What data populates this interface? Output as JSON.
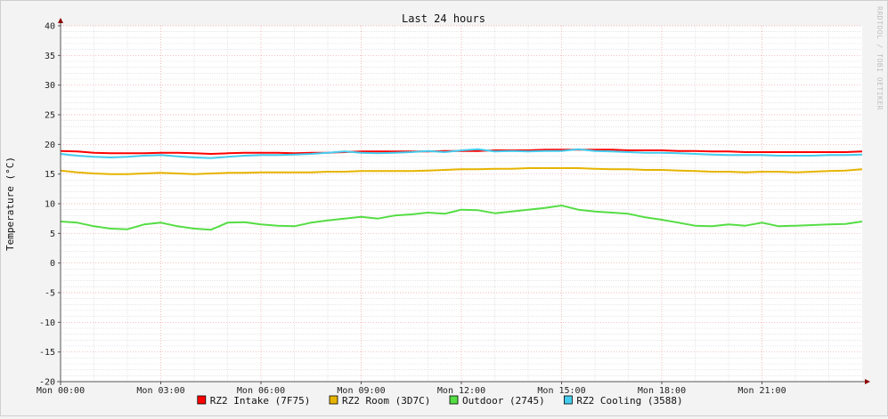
{
  "chart_data": {
    "type": "line",
    "title": "Last 24 hours",
    "ylabel": "Temperature (°C)",
    "watermark": "RRDTOOL / TOBI OETIKER",
    "ylim": [
      -20,
      40
    ],
    "yticks": [
      40,
      35,
      30,
      25,
      20,
      15,
      10,
      5,
      0,
      -5,
      -10,
      -15,
      -20
    ],
    "xlim": [
      0,
      24
    ],
    "xticks": [
      {
        "hour": 0,
        "label": "Mon 00:00"
      },
      {
        "hour": 3,
        "label": "Mon 03:00"
      },
      {
        "hour": 6,
        "label": "Mon 06:00"
      },
      {
        "hour": 9,
        "label": "Mon 09:00"
      },
      {
        "hour": 12,
        "label": "Mon 12:00"
      },
      {
        "hour": 15,
        "label": "Mon 15:00"
      },
      {
        "hour": 18,
        "label": "Mon 18:00"
      },
      {
        "hour": 21,
        "label": "Mon 21:00"
      }
    ],
    "grid": true,
    "legend_position": "bottom",
    "series": [
      {
        "name": "RZ2 Intake (7F75)",
        "color": "#ff0000",
        "x": [
          0,
          0.5,
          1,
          1.5,
          2,
          2.5,
          3,
          3.5,
          4,
          4.5,
          5,
          5.5,
          6,
          6.5,
          7,
          7.5,
          8,
          8.5,
          9,
          9.5,
          10,
          10.5,
          11,
          11.5,
          12,
          12.5,
          13,
          13.5,
          14,
          14.5,
          15,
          15.5,
          16,
          16.5,
          17,
          17.5,
          18,
          18.5,
          19,
          19.5,
          20,
          20.5,
          21,
          21.5,
          22,
          22.5,
          23,
          23.5,
          24
        ],
        "values": [
          18.9,
          18.8,
          18.6,
          18.5,
          18.5,
          18.5,
          18.6,
          18.6,
          18.5,
          18.4,
          18.5,
          18.6,
          18.6,
          18.6,
          18.5,
          18.6,
          18.6,
          18.7,
          18.8,
          18.8,
          18.8,
          18.8,
          18.8,
          18.9,
          18.9,
          18.9,
          19.0,
          19.0,
          19.0,
          19.1,
          19.1,
          19.1,
          19.1,
          19.1,
          19.0,
          19.0,
          19.0,
          18.9,
          18.9,
          18.8,
          18.8,
          18.7,
          18.7,
          18.7,
          18.7,
          18.7,
          18.7,
          18.7,
          18.8
        ]
      },
      {
        "name": "RZ2 Room (3D7C)",
        "color": "#e6b400",
        "x": [
          0,
          0.5,
          1,
          1.5,
          2,
          2.5,
          3,
          3.5,
          4,
          4.5,
          5,
          5.5,
          6,
          6.5,
          7,
          7.5,
          8,
          8.5,
          9,
          9.5,
          10,
          10.5,
          11,
          11.5,
          12,
          12.5,
          13,
          13.5,
          14,
          14.5,
          15,
          15.5,
          16,
          16.5,
          17,
          17.5,
          18,
          18.5,
          19,
          19.5,
          20,
          20.5,
          21,
          21.5,
          22,
          22.5,
          23,
          23.5,
          24
        ],
        "values": [
          15.6,
          15.3,
          15.1,
          15.0,
          15.0,
          15.1,
          15.2,
          15.1,
          15.0,
          15.1,
          15.2,
          15.2,
          15.3,
          15.3,
          15.3,
          15.3,
          15.4,
          15.4,
          15.5,
          15.5,
          15.5,
          15.5,
          15.6,
          15.7,
          15.8,
          15.8,
          15.9,
          15.9,
          16.0,
          16.0,
          16.0,
          16.0,
          15.9,
          15.8,
          15.8,
          15.7,
          15.7,
          15.6,
          15.5,
          15.4,
          15.4,
          15.3,
          15.4,
          15.4,
          15.3,
          15.4,
          15.5,
          15.6,
          15.8
        ]
      },
      {
        "name": "Outdoor (2745)",
        "color": "#55dd44",
        "x": [
          0,
          0.5,
          1,
          1.5,
          2,
          2.5,
          3,
          3.5,
          4,
          4.5,
          5,
          5.5,
          6,
          6.5,
          7,
          7.5,
          8,
          8.5,
          9,
          9.5,
          10,
          10.5,
          11,
          11.5,
          12,
          12.5,
          13,
          13.5,
          14,
          14.5,
          15,
          15.5,
          16,
          16.5,
          17,
          17.5,
          18,
          18.5,
          19,
          19.5,
          20,
          20.5,
          21,
          21.5,
          22,
          22.5,
          23,
          23.5,
          24
        ],
        "values": [
          7.0,
          6.8,
          6.2,
          5.8,
          5.7,
          6.5,
          6.8,
          6.2,
          5.8,
          5.6,
          6.8,
          6.9,
          6.5,
          6.3,
          6.2,
          6.8,
          7.2,
          7.5,
          7.8,
          7.5,
          8.0,
          8.2,
          8.5,
          8.3,
          9.0,
          8.9,
          8.4,
          8.7,
          9.0,
          9.3,
          9.7,
          9.0,
          8.7,
          8.5,
          8.3,
          7.7,
          7.3,
          6.8,
          6.3,
          6.2,
          6.5,
          6.3,
          6.8,
          6.2,
          6.3,
          6.4,
          6.5,
          6.6,
          7.0
        ]
      },
      {
        "name": "RZ2 Cooling (3588)",
        "color": "#44ccee",
        "x": [
          0,
          0.5,
          1,
          1.5,
          2,
          2.5,
          3,
          3.5,
          4,
          4.5,
          5,
          5.5,
          6,
          6.5,
          7,
          7.5,
          8,
          8.5,
          9,
          9.5,
          10,
          10.5,
          11,
          11.5,
          12,
          12.5,
          13,
          13.5,
          14,
          14.5,
          15,
          15.5,
          16,
          16.5,
          17,
          17.5,
          18,
          18.5,
          19,
          19.5,
          20,
          20.5,
          21,
          21.5,
          22,
          22.5,
          23,
          23.5,
          24
        ],
        "values": [
          18.4,
          18.1,
          17.9,
          17.8,
          17.9,
          18.1,
          18.2,
          18.0,
          17.8,
          17.7,
          17.9,
          18.1,
          18.2,
          18.2,
          18.3,
          18.4,
          18.6,
          18.8,
          18.6,
          18.5,
          18.6,
          18.7,
          18.9,
          18.7,
          19.0,
          19.2,
          18.8,
          18.9,
          18.8,
          18.9,
          18.9,
          19.2,
          18.9,
          18.8,
          18.7,
          18.6,
          18.6,
          18.5,
          18.4,
          18.3,
          18.2,
          18.2,
          18.2,
          18.1,
          18.1,
          18.1,
          18.2,
          18.2,
          18.3
        ]
      }
    ]
  }
}
